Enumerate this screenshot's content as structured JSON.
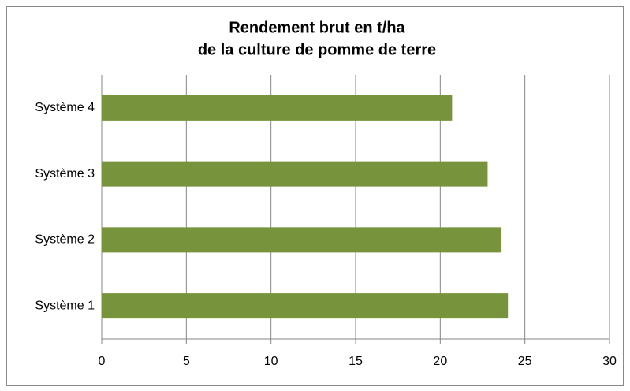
{
  "chart_data": {
    "type": "bar",
    "orientation": "horizontal",
    "title": [
      "Rendement brut en t/ha",
      "de la culture de pomme de terre"
    ],
    "categories": [
      "Système 1",
      "Système 2",
      "Système 3",
      "Système 4"
    ],
    "values": [
      24.0,
      23.6,
      22.8,
      20.7
    ],
    "color": "#77933c",
    "xlim": [
      0,
      30
    ],
    "xticks": [
      0,
      5,
      10,
      15,
      20,
      25,
      30
    ],
    "grid": true
  }
}
